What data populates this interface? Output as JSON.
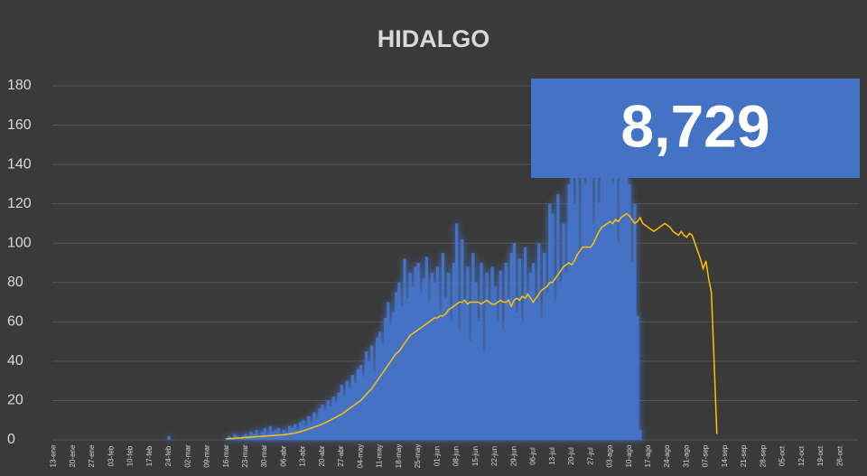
{
  "chart_data": {
    "type": "bar_line",
    "title": "HIDALGO",
    "annotation": "8,729",
    "categories": [
      "13-ene",
      null,
      null,
      null,
      null,
      null,
      null,
      "20-ene",
      null,
      null,
      null,
      null,
      null,
      null,
      "27-ene",
      null,
      null,
      null,
      null,
      null,
      null,
      "03-feb",
      null,
      null,
      null,
      null,
      null,
      null,
      "10-feb",
      null,
      null,
      null,
      null,
      null,
      null,
      "17-feb",
      null,
      null,
      null,
      null,
      null,
      null,
      "24-feb",
      null,
      null,
      null,
      null,
      null,
      null,
      "02-mar",
      null,
      null,
      null,
      null,
      null,
      null,
      "09-mar",
      null,
      null,
      null,
      null,
      null,
      null,
      "16-mar",
      null,
      null,
      null,
      null,
      null,
      null,
      "23-mar",
      null,
      null,
      null,
      null,
      null,
      null,
      "30-mar",
      null,
      null,
      null,
      null,
      null,
      null,
      "06-abr",
      null,
      null,
      null,
      null,
      null,
      null,
      "13-abr",
      null,
      null,
      null,
      null,
      null,
      null,
      "20-abr",
      null,
      null,
      null,
      null,
      null,
      null,
      "27-abr",
      null,
      null,
      null,
      null,
      null,
      null,
      "04-may",
      null,
      null,
      null,
      null,
      null,
      null,
      "11-may",
      null,
      null,
      null,
      null,
      null,
      null,
      "18-may",
      null,
      null,
      null,
      null,
      null,
      null,
      "25-may",
      null,
      null,
      null,
      null,
      null,
      null,
      "01-jun",
      null,
      null,
      null,
      null,
      null,
      null,
      "08-jun",
      null,
      null,
      null,
      null,
      null,
      null,
      "15-jun",
      null,
      null,
      null,
      null,
      null,
      null,
      "22-jun",
      null,
      null,
      null,
      null,
      null,
      null,
      "29-jun",
      null,
      null,
      null,
      null,
      null,
      null,
      "06-jul",
      null,
      null,
      null,
      null,
      null,
      null,
      "13-jul",
      null,
      null,
      null,
      null,
      null,
      null,
      "20-jul",
      null,
      null,
      null,
      null,
      null,
      null,
      "27-jul",
      null,
      null,
      null,
      null,
      null,
      null,
      "03-ago",
      null,
      null,
      null,
      null,
      null,
      null,
      "10-ago",
      null,
      null,
      null,
      null,
      null,
      null,
      "17-ago",
      null,
      null,
      null,
      null,
      null,
      null,
      "24-ago",
      null,
      null,
      null,
      null,
      null,
      null,
      "31-ago",
      null,
      null,
      null,
      null,
      null,
      null,
      "07-sep",
      null,
      null,
      null,
      null,
      null,
      null,
      "14-sep",
      null,
      null,
      null,
      null,
      null,
      null,
      "21-sep",
      null,
      null,
      null,
      null,
      null,
      null,
      "28-sep",
      null,
      null,
      null,
      null,
      null,
      null,
      "05-oct",
      null,
      null,
      null,
      null,
      null,
      null,
      "12-oct",
      null,
      null,
      null,
      null,
      null,
      null,
      "19-oct",
      null,
      null,
      null,
      null,
      null,
      null,
      "26-oct",
      null,
      null,
      null,
      null,
      null,
      null
    ],
    "series": [
      {
        "type": "bar",
        "color": "#4472c4",
        "values": [
          null,
          null,
          null,
          null,
          null,
          null,
          null,
          null,
          null,
          null,
          null,
          null,
          null,
          null,
          null,
          null,
          null,
          null,
          null,
          null,
          null,
          null,
          null,
          null,
          null,
          null,
          null,
          null,
          null,
          null,
          null,
          null,
          null,
          null,
          null,
          null,
          null,
          null,
          null,
          null,
          null,
          null,
          2,
          null,
          null,
          null,
          null,
          null,
          null,
          null,
          null,
          null,
          null,
          null,
          null,
          null,
          null,
          null,
          null,
          null,
          null,
          null,
          null,
          1,
          2,
          1,
          3,
          2,
          1,
          2,
          3,
          2,
          4,
          3,
          5,
          2,
          4,
          6,
          3,
          7,
          4,
          5,
          6,
          3,
          5,
          4,
          7,
          6,
          8,
          5,
          9,
          10,
          7,
          12,
          9,
          14,
          11,
          16,
          18,
          15,
          20,
          17,
          22,
          19,
          24,
          28,
          22,
          30,
          26,
          33,
          29,
          36,
          38,
          32,
          45,
          40,
          48,
          35,
          52,
          55,
          48,
          62,
          70,
          58,
          65,
          75,
          80,
          68,
          92,
          72,
          85,
          78,
          88,
          90,
          75,
          82,
          93,
          70,
          85,
          80,
          88,
          65,
          95,
          72,
          85,
          60,
          90,
          110,
          55,
          102,
          70,
          88,
          50,
          95,
          80,
          60,
          90,
          45,
          85,
          70,
          88,
          78,
          60,
          86,
          55,
          90,
          72,
          95,
          100,
          65,
          92,
          60,
          98,
          75,
          85,
          90,
          70,
          100,
          62,
          95,
          75,
          120,
          115,
          70,
          125,
          80,
          110,
          85,
          130,
          160,
          120,
          145,
          95,
          150,
          130,
          140,
          150,
          110,
          155,
          120,
          160,
          135,
          145,
          165,
          130,
          150,
          100,
          155,
          140,
          160,
          130,
          90,
          120,
          63,
          5,
          null,
          null,
          null,
          null,
          null,
          null,
          null,
          null,
          null,
          null,
          null,
          null,
          null,
          null,
          null,
          null,
          null,
          null,
          null,
          null,
          null,
          null,
          null,
          null,
          null,
          null,
          null,
          null,
          null,
          null,
          null,
          null,
          null,
          null,
          null,
          null,
          null,
          null,
          null,
          null,
          null,
          null,
          null,
          null,
          null,
          null,
          null,
          null,
          null,
          null,
          null,
          null,
          null,
          null,
          null,
          null,
          null,
          null,
          null,
          null,
          null,
          null,
          null,
          null,
          null,
          null,
          null,
          null,
          null,
          null,
          null,
          null,
          null,
          null,
          null,
          null,
          null,
          null,
          null
        ]
      },
      {
        "type": "line",
        "color": "#ffc000",
        "values": [
          null,
          null,
          null,
          null,
          null,
          null,
          null,
          null,
          null,
          null,
          null,
          null,
          null,
          null,
          null,
          null,
          null,
          null,
          null,
          null,
          null,
          null,
          null,
          null,
          null,
          null,
          null,
          null,
          null,
          null,
          null,
          null,
          null,
          null,
          null,
          null,
          null,
          null,
          null,
          null,
          null,
          null,
          null,
          null,
          null,
          null,
          null,
          null,
          null,
          null,
          null,
          null,
          null,
          null,
          null,
          null,
          null,
          null,
          null,
          null,
          null,
          null,
          null,
          0.5,
          0.6,
          0.7,
          0.8,
          0.9,
          1,
          1.1,
          1.2,
          1.3,
          1.4,
          1.5,
          1.6,
          1.7,
          1.8,
          1.9,
          2,
          2.1,
          2.2,
          2.3,
          2.4,
          2.5,
          2.6,
          2.8,
          3,
          3.2,
          3.5,
          3.8,
          4.2,
          4.6,
          5,
          5.5,
          6,
          6.5,
          7,
          7.5,
          8,
          8.7,
          9.4,
          10,
          10.8,
          11.5,
          12.3,
          13,
          14,
          15,
          16,
          17,
          18,
          19,
          20,
          21.5,
          23,
          24.5,
          26,
          28,
          30,
          32,
          34,
          36,
          38,
          40,
          42,
          44,
          45,
          47,
          49,
          51,
          53,
          54,
          55,
          56,
          57,
          58,
          59,
          60,
          61,
          62,
          62,
          63,
          63,
          64,
          66,
          67,
          68,
          69,
          70,
          70,
          71,
          69,
          70,
          70,
          70,
          70,
          69,
          70,
          71,
          70,
          69,
          69,
          70,
          71,
          70,
          70,
          71,
          68,
          71,
          72,
          71,
          73,
          72,
          74,
          72,
          70,
          72,
          74,
          76,
          77,
          78,
          80,
          80,
          82,
          84,
          86,
          88,
          89,
          90,
          89,
          91,
          94,
          96,
          98,
          98,
          98,
          98,
          100,
          103,
          106,
          108,
          109,
          110,
          111,
          110,
          112,
          111,
          113,
          114,
          115,
          114,
          112,
          110,
          111,
          113,
          110,
          109,
          108,
          107,
          106,
          107,
          108,
          109,
          110,
          109,
          108,
          106,
          105,
          104,
          106,
          104,
          103,
          105,
          104,
          100,
          96,
          92,
          87,
          91,
          82,
          75,
          40,
          3,
          null,
          null,
          null,
          null,
          null,
          null,
          null,
          null,
          null,
          null,
          null,
          null,
          null,
          null,
          null,
          null,
          null,
          null,
          null,
          null,
          null,
          null,
          null,
          null,
          null,
          null,
          null,
          null,
          null,
          null,
          null,
          null,
          null,
          null,
          null,
          null,
          null,
          null,
          null,
          null,
          null,
          null,
          null,
          null,
          null,
          null,
          null,
          null,
          null,
          null,
          null
        ]
      }
    ],
    "ylim": [
      0,
      180
    ],
    "yticks": [
      0,
      20,
      40,
      60,
      80,
      100,
      120,
      140,
      160,
      180
    ],
    "grid": true
  }
}
